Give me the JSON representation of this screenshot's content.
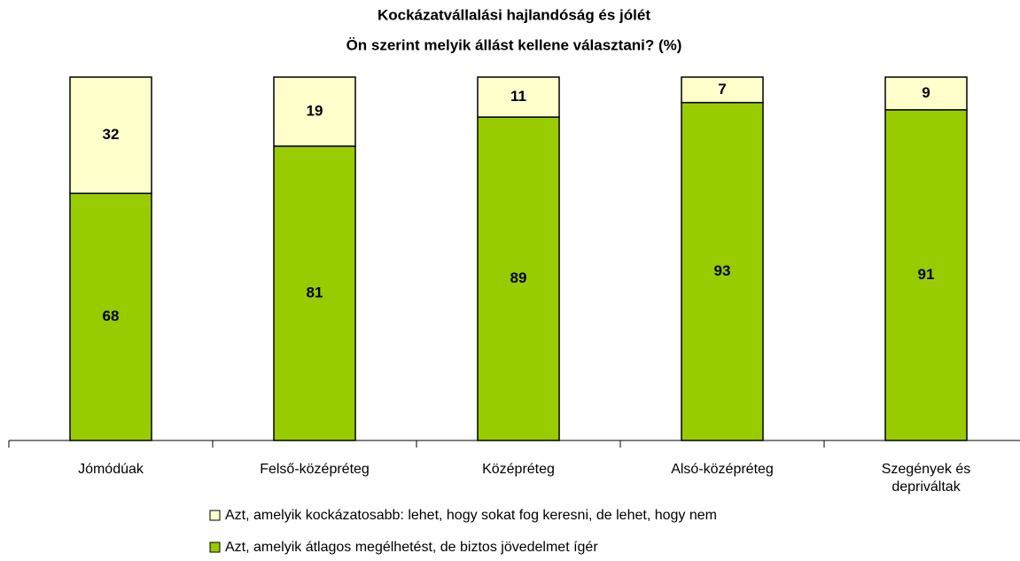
{
  "chart_data": {
    "type": "stacked_bar",
    "title": "Kockázatvállalási hajlandóság és jólét",
    "subtitle": "Ön szerint melyik állást kellene választani? (%)",
    "categories": [
      "Jómódúak",
      "Felső-középréteg",
      "Középréteg",
      "Alsó-középréteg",
      "Szegények és\ndepriváltak"
    ],
    "series": [
      {
        "name": "Azt, amelyik átlagos megélhetést, de biztos jövedelmet ígér",
        "color": "#99cc00",
        "values": [
          68,
          81,
          89,
          93,
          91
        ]
      },
      {
        "name": "Azt, amelyik kockázatosabb: lehet, hogy sokat fog keresni, de lehet, hogy nem",
        "color": "#ffffcc",
        "values": [
          32,
          19,
          11,
          7,
          9
        ]
      }
    ],
    "ylim": [
      0,
      100
    ]
  }
}
